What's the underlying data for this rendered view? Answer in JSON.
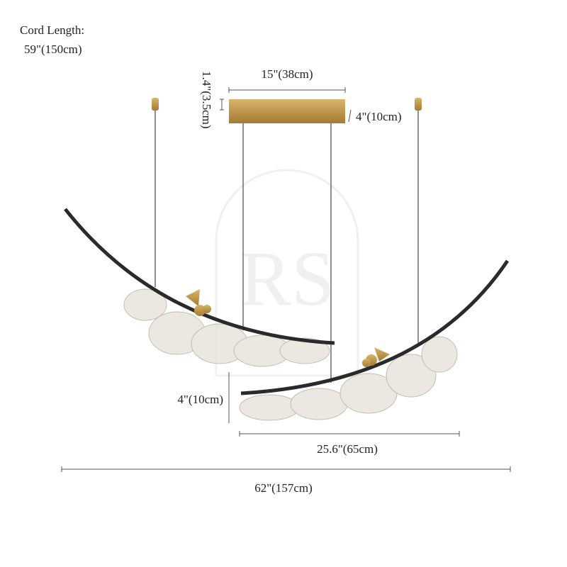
{
  "cord_length": {
    "label": "Cord Length:",
    "value": "59\"(150cm)"
  },
  "dimensions": {
    "canopy_width": "15\"(38cm)",
    "canopy_height": "1.4\"(3.5cm)",
    "canopy_depth": "4\"(10cm)",
    "shade_height": "4\"(10cm)",
    "shade_width": "25.6\"(65cm)",
    "overall_width": "62\"(157cm)"
  },
  "watermark": "RS"
}
